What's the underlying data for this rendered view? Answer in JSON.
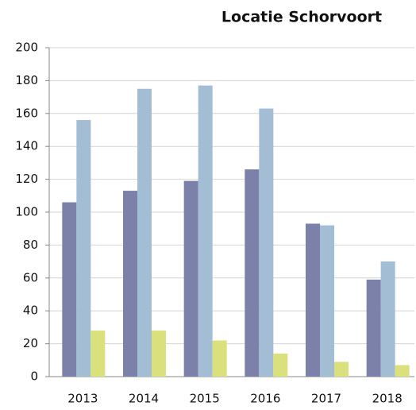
{
  "chart_data": {
    "type": "bar",
    "title": "Locatie Schorvoort",
    "categories": [
      "2013",
      "2014",
      "2015",
      "2016",
      "2017",
      "2018"
    ],
    "series": [
      {
        "color": "#7b81a9",
        "values": [
          106,
          113,
          119,
          126,
          93,
          59
        ]
      },
      {
        "color": "#a3bdd5",
        "values": [
          156,
          175,
          177,
          163,
          92,
          70
        ]
      },
      {
        "color": "#d9e07c",
        "values": [
          28,
          28,
          22,
          14,
          9,
          7
        ]
      }
    ],
    "ylim": [
      0,
      200
    ],
    "yticks": [
      0,
      20,
      40,
      60,
      80,
      100,
      120,
      140,
      160,
      180,
      200
    ],
    "grid": true
  }
}
